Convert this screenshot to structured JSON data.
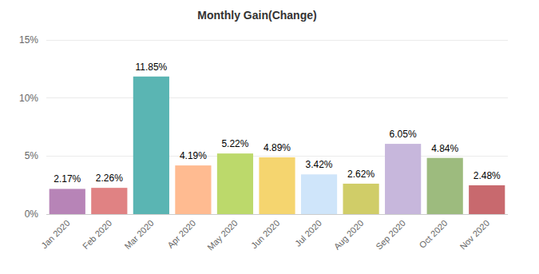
{
  "chart_data": {
    "type": "bar",
    "title": "Monthly Gain(Change)",
    "categories": [
      "Jan 2020",
      "Feb 2020",
      "Mar 2020",
      "Apr 2020",
      "May 2020",
      "Jun 2020",
      "Jul 2020",
      "Aug 2020",
      "Sep 2020",
      "Oct 2020",
      "Nov 2020"
    ],
    "values": [
      2.17,
      2.26,
      11.85,
      4.19,
      5.22,
      4.89,
      3.42,
      2.62,
      6.05,
      4.84,
      2.48
    ],
    "value_labels": [
      "2.17%",
      "2.26%",
      "11.85%",
      "4.19%",
      "5.22%",
      "4.89%",
      "3.42%",
      "2.62%",
      "6.05%",
      "4.84%",
      "2.48%"
    ],
    "colors": [
      "#b784b7",
      "#e08283",
      "#5ab5b3",
      "#ffbb91",
      "#bcd96b",
      "#f5d56f",
      "#cfe5fa",
      "#d0cd68",
      "#c7b7dc",
      "#9dbb7e",
      "#c8696e"
    ],
    "ylim": [
      0,
      15
    ],
    "yticks": [
      {
        "value": 0,
        "label": "0%"
      },
      {
        "value": 5,
        "label": "5%"
      },
      {
        "value": 10,
        "label": "10%"
      },
      {
        "value": 15,
        "label": "15%"
      }
    ],
    "grid": true,
    "data_labels": true
  }
}
